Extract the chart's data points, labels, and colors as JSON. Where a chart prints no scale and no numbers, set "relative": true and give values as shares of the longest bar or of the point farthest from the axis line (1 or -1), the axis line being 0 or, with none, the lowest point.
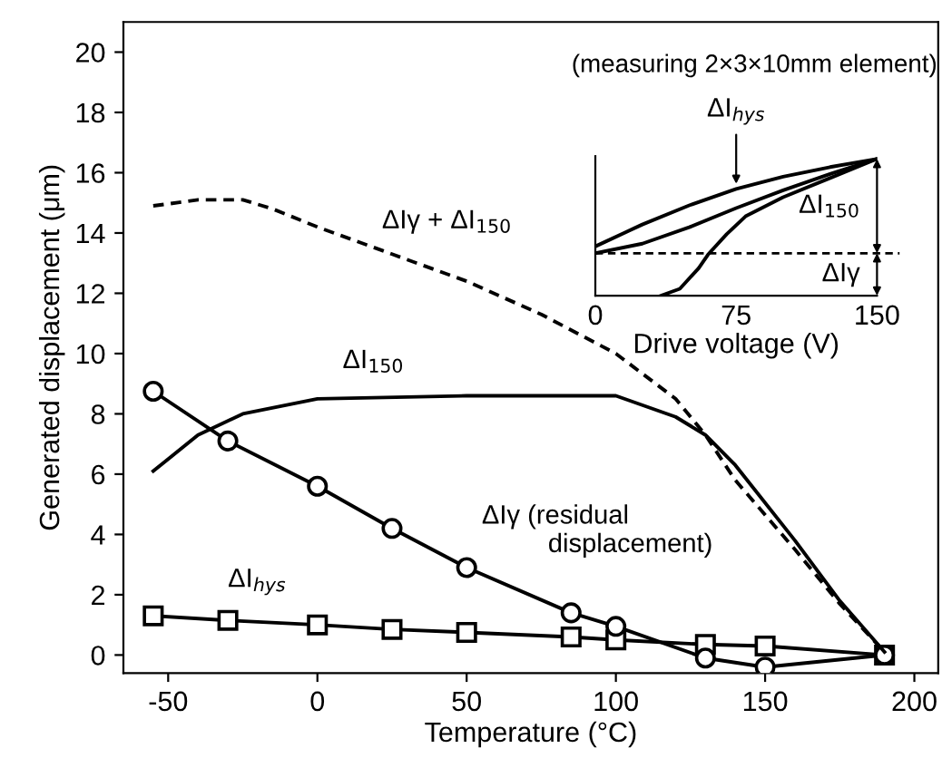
{
  "chart_data": [
    {
      "type": "line",
      "xlabel": "Temperature (°C)",
      "ylabel": "Generated displacement (μm)",
      "xlim": [
        -65,
        208
      ],
      "xticks": [
        -50,
        0,
        50,
        100,
        150,
        200
      ],
      "ylim": [
        -0.6,
        21
      ],
      "yticks": [
        0,
        2,
        4,
        6,
        8,
        10,
        12,
        14,
        16,
        18,
        20
      ],
      "grid": false,
      "legend": false,
      "series": [
        {
          "name": "ΔIγ + ΔI$_{150}$",
          "color": "#000000",
          "marker": "none",
          "line_style": "dashed",
          "x": [
            -55,
            -40,
            -25,
            -15,
            0,
            25,
            50,
            75,
            100,
            120,
            130,
            140,
            160,
            175,
            190
          ],
          "values": [
            14.9,
            15.1,
            15.1,
            14.8,
            14.2,
            13.3,
            12.4,
            11.3,
            10.0,
            8.5,
            7.3,
            5.8,
            3.5,
            1.7,
            0.1
          ]
        },
        {
          "name": "ΔI$_{150}$",
          "color": "#000000",
          "marker": "none",
          "line_style": "solid",
          "x": [
            -55,
            -40,
            -25,
            0,
            50,
            100,
            120,
            130,
            140,
            160,
            175,
            190
          ],
          "values": [
            6.1,
            7.3,
            8.0,
            8.5,
            8.6,
            8.6,
            7.9,
            7.3,
            6.3,
            3.8,
            1.8,
            0.1
          ]
        },
        {
          "name": "ΔIγ (residual\n         displacement)",
          "color": "#000000",
          "marker": "circle",
          "line_style": "solid",
          "x": [
            -55,
            -30,
            0,
            25,
            50,
            85,
            100,
            130,
            150,
            190
          ],
          "values": [
            8.75,
            7.1,
            5.6,
            4.2,
            2.9,
            1.4,
            0.95,
            -0.1,
            -0.4,
            0.0
          ]
        },
        {
          "name": "ΔI$_{hys}$",
          "color": "#000000",
          "marker": "square",
          "line_style": "solid",
          "x": [
            -55,
            -30,
            0,
            25,
            50,
            85,
            100,
            130,
            150,
            190
          ],
          "values": [
            1.3,
            1.15,
            1.0,
            0.85,
            0.75,
            0.6,
            0.5,
            0.35,
            0.3,
            0.0
          ]
        }
      ],
      "annotations": [
        "(measuring 2×3×10mm element)"
      ]
    },
    {
      "type": "line",
      "relative": true,
      "xlabel": "Drive voltage (V)",
      "xlim": [
        0,
        150
      ],
      "xticks": [
        0,
        75,
        150
      ],
      "tick_labels": "x",
      "grid": false,
      "legend": false,
      "series": [
        {
          "color": "#000000",
          "x": [
            0,
            25,
            50,
            75,
            100,
            125,
            150
          ],
          "values": [
            0.36,
            0.52,
            0.66,
            0.78,
            0.87,
            0.94,
            1.0
          ]
        },
        {
          "color": "#000000",
          "x": [
            0,
            25,
            50,
            75,
            100,
            125,
            150
          ],
          "values": [
            0.31,
            0.38,
            0.5,
            0.64,
            0.77,
            0.89,
            1.0
          ]
        },
        {
          "color": "#000000",
          "x": [
            35,
            45,
            55,
            60,
            70,
            80,
            100,
            125,
            150
          ],
          "values": [
            0.0,
            0.05,
            0.2,
            0.3,
            0.45,
            0.58,
            0.72,
            0.86,
            1.0
          ]
        }
      ],
      "ref_lines": [
        {
          "axis": "y",
          "value": 0.31,
          "line_style": "dashed",
          "color": "#000000"
        }
      ],
      "annotations": [
        {
          "text": "ΔI$_{hys}$",
          "x": 75,
          "y": 0.78
        },
        "ΔI$_{150}$",
        "ΔIγ"
      ]
    }
  ]
}
